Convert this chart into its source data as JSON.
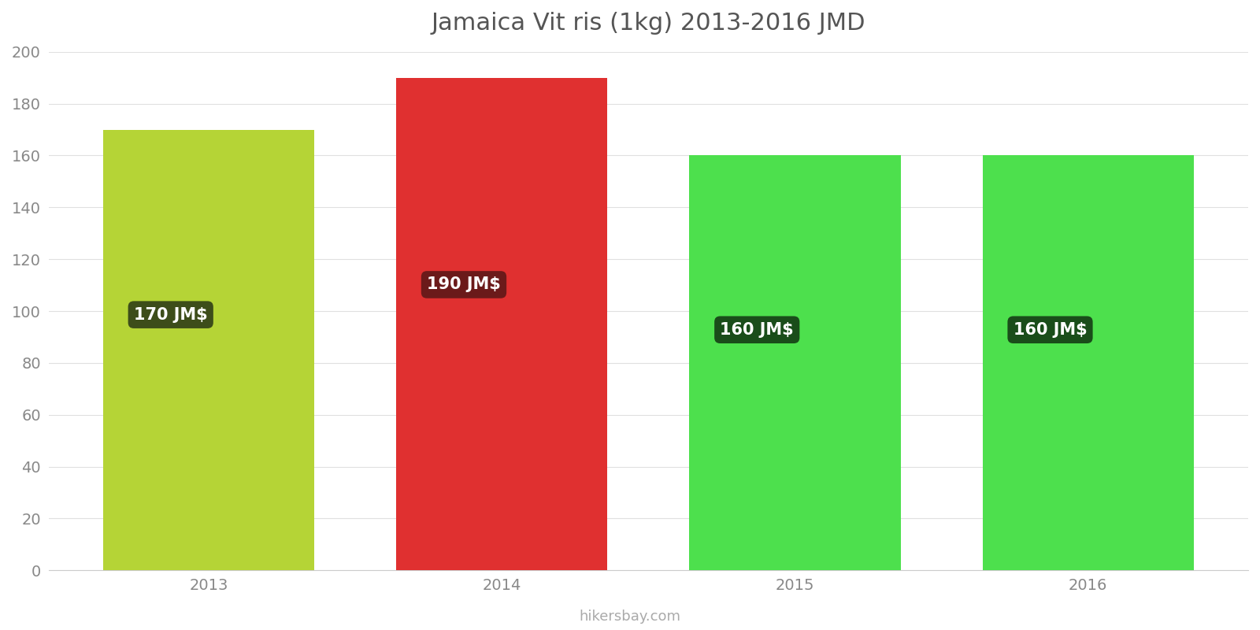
{
  "title": "Jamaica Vit ris (1kg) 2013-2016 JMD",
  "years": [
    2013,
    2014,
    2015,
    2016
  ],
  "values": [
    170,
    190,
    160,
    160
  ],
  "bar_colors": [
    "#b5d436",
    "#e03030",
    "#4de04d",
    "#4de04d"
  ],
  "label_texts": [
    "170 JM$",
    "190 JM$",
    "160 JM$",
    "160 JM$"
  ],
  "label_bg_colors": [
    "#3d4d1a",
    "#6b1a1a",
    "#1a4d1a",
    "#1a4d1a"
  ],
  "label_text_color": "#ffffff",
  "ylim": [
    0,
    200
  ],
  "yticks": [
    0,
    20,
    40,
    60,
    80,
    100,
    120,
    140,
    160,
    180,
    200
  ],
  "background_color": "#ffffff",
  "grid_color": "#e0e0e0",
  "title_fontsize": 22,
  "tick_fontsize": 14,
  "watermark": "hikersbay.com",
  "watermark_color": "#aaaaaa",
  "bar_width": 0.72
}
